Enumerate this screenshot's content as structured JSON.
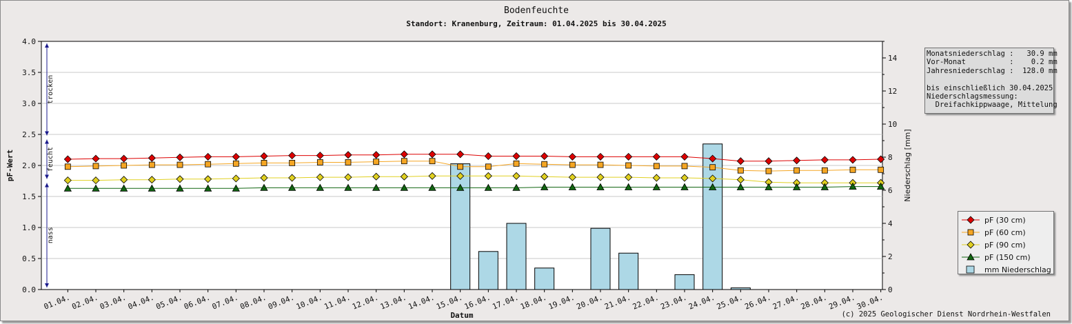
{
  "chart_data": {
    "type": "line",
    "title": "Bodenfeuchte",
    "subtitle": "Standort: Kranenburg, Zeitraum: 01.04.2025 bis 30.04.2025",
    "xlabel": "Datum",
    "ylabel": "pF-Wert",
    "y2label": "Niederschlag [mm]",
    "ylim": [
      0,
      4
    ],
    "y2lim": [
      0,
      15
    ],
    "yticks": [
      "0.0",
      "0.5",
      "1.0",
      "1.5",
      "2.0",
      "2.5",
      "3.0",
      "3.5",
      "4.0"
    ],
    "y2ticks": [
      "0",
      "2",
      "4",
      "6",
      "8",
      "10",
      "12",
      "14"
    ],
    "grid": true,
    "categories": [
      "01.04.",
      "02.04.",
      "03.04.",
      "04.04.",
      "05.04.",
      "06.04.",
      "07.04.",
      "08.04.",
      "09.04.",
      "10.04.",
      "11.04.",
      "12.04.",
      "13.04.",
      "14.04.",
      "15.04.",
      "16.04.",
      "17.04.",
      "18.04.",
      "19.04.",
      "20.04.",
      "21.04.",
      "22.04.",
      "23.04.",
      "24.04.",
      "25.04.",
      "26.04.",
      "27.04.",
      "28.04.",
      "29.04.",
      "30.04."
    ],
    "series": [
      {
        "name": "pF (30 cm)",
        "color": "#dd0000",
        "marker": "diamond",
        "axis": "left",
        "values": [
          2.1,
          2.11,
          2.11,
          2.12,
          2.13,
          2.14,
          2.14,
          2.15,
          2.16,
          2.16,
          2.17,
          2.17,
          2.18,
          2.18,
          2.18,
          2.15,
          2.15,
          2.15,
          2.14,
          2.14,
          2.14,
          2.14,
          2.14,
          2.11,
          2.07,
          2.07,
          2.08,
          2.09,
          2.09,
          2.1
        ]
      },
      {
        "name": "pF (60 cm)",
        "color": "#f5a623",
        "marker": "square",
        "axis": "left",
        "values": [
          1.98,
          1.99,
          2.0,
          2.01,
          2.01,
          2.02,
          2.03,
          2.04,
          2.04,
          2.05,
          2.05,
          2.06,
          2.07,
          2.07,
          1.98,
          1.98,
          2.03,
          2.02,
          2.01,
          2.01,
          2.0,
          1.99,
          1.99,
          1.97,
          1.92,
          1.91,
          1.92,
          1.92,
          1.93,
          1.93
        ]
      },
      {
        "name": "pF (90 cm)",
        "color": "#e0d020",
        "marker": "diamond",
        "axis": "left",
        "values": [
          1.76,
          1.76,
          1.77,
          1.77,
          1.78,
          1.78,
          1.79,
          1.8,
          1.8,
          1.81,
          1.81,
          1.82,
          1.82,
          1.83,
          1.83,
          1.83,
          1.83,
          1.82,
          1.81,
          1.81,
          1.81,
          1.8,
          1.8,
          1.79,
          1.77,
          1.73,
          1.72,
          1.72,
          1.72,
          1.72
        ]
      },
      {
        "name": "pF (150 cm)",
        "color": "#116611",
        "marker": "triangle",
        "axis": "left",
        "values": [
          1.63,
          1.63,
          1.63,
          1.63,
          1.63,
          1.63,
          1.63,
          1.64,
          1.64,
          1.64,
          1.64,
          1.64,
          1.64,
          1.64,
          1.64,
          1.64,
          1.64,
          1.65,
          1.65,
          1.65,
          1.65,
          1.65,
          1.65,
          1.65,
          1.65,
          1.65,
          1.65,
          1.65,
          1.66,
          1.66
        ]
      },
      {
        "name": "mm  Niederschlag",
        "color": "#add8e6",
        "type": "bar",
        "axis": "right",
        "values": [
          0,
          0,
          0,
          0,
          0,
          0,
          0,
          0,
          0,
          0,
          0,
          0,
          0,
          0,
          7.6,
          2.3,
          4.0,
          1.3,
          0,
          3.7,
          2.2,
          0,
          0.9,
          8.8,
          0.1,
          0,
          0,
          0,
          0,
          0
        ]
      }
    ],
    "zones": [
      {
        "label": "nass",
        "from": 0,
        "to": 1.75
      },
      {
        "label": "feucht",
        "from": 1.75,
        "to": 2.45
      },
      {
        "label": "trocken",
        "from": 2.45,
        "to": 4.0
      }
    ]
  },
  "info": {
    "lines": [
      "Monatsniederschlag :   30.9 mm",
      "Vor-Monat          :    0.2 mm",
      "Jahresniederschlag :  128.0 mm",
      "",
      "bis einschließlich 30.04.2025",
      "Niederschlagsmessung:",
      "  Dreifachkippwaage, Mittelung"
    ]
  },
  "copyright": "(c) 2025 Geologischer Dienst Nordrhein-Westfalen"
}
